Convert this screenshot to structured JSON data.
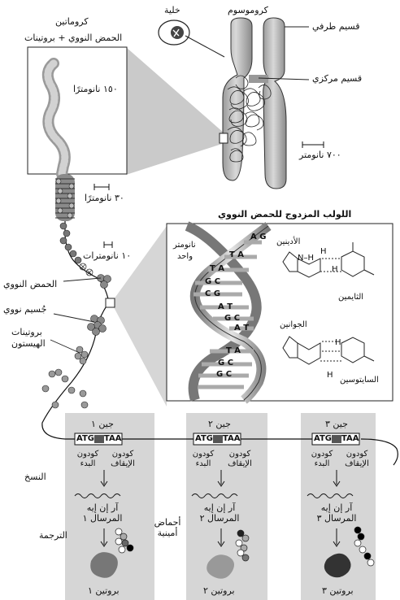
{
  "labels": {
    "chromatin": "كروماتين",
    "chromatin_composition": "الحمض النووي + بروتينات",
    "cell": "خلية",
    "chromosome": "كروموسوم",
    "telomere": "قسيم طرفي",
    "centromere": "قسيم مركزي",
    "scale_150nm": "١٥٠ نانومترًا",
    "scale_700nm": "٧٠٠ نانومتر",
    "scale_30nm": "٣٠ نانومترًا",
    "scale_10nm": "١٠ نانومترات",
    "scale_1nm_line1": "نانومتر",
    "scale_1nm_line2": "واحد",
    "double_helix": "اللولب المزدوج للحمض النووي",
    "dna": "الحمض النووي",
    "nucleosome": "جُسيم نووي",
    "histone_line1": "بروتينات",
    "histone_line2": "الهيستون",
    "adenine": "الأدينين",
    "thymine": "الثايمين",
    "guanine": "الجوانين",
    "cytosine": "السايتوسين",
    "h": "H",
    "nh": "N–H",
    "start_codon": "كودون البدء",
    "stop_codon": "كودون الإيقاف",
    "transcription": "النسخ",
    "translation": "الترجمة",
    "amino_acids": "أحماض أمينية"
  },
  "base_pairs": [
    "A G",
    "T A",
    "T A",
    "G C",
    "C G",
    "A T",
    "G C",
    "A T",
    "T A",
    "G C",
    "G C"
  ],
  "genes": [
    {
      "name": "جين ١",
      "start_seq": "ATG",
      "stop_seq": "TAA",
      "mrna": "آر إن إيه المرسال ١",
      "protein": "بروتين ١"
    },
    {
      "name": "جين ٢",
      "start_seq": "ATG",
      "stop_seq": "TAA",
      "mrna": "آر إن إيه المرسال ٢",
      "protein": "بروتين ٢"
    },
    {
      "name": "جين ٣",
      "start_seq": "ATG",
      "stop_seq": "TAA",
      "mrna": "آر إن إيه المرسال ٣",
      "protein": "بروتين ٣"
    }
  ]
}
